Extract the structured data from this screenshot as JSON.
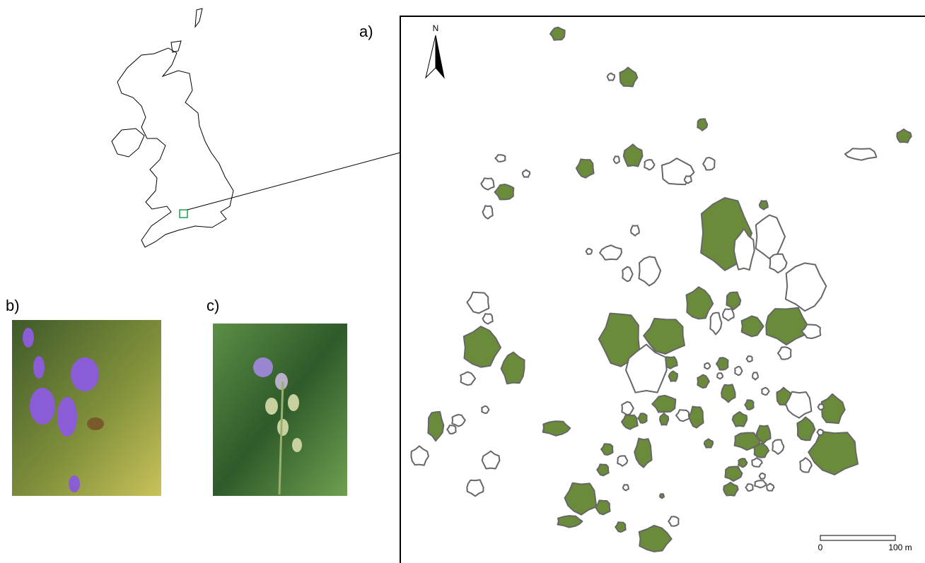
{
  "panels": {
    "a": {
      "label": "a)",
      "north": "N",
      "scale": {
        "start": "0",
        "end": "100 m"
      }
    },
    "b": {
      "label": "b)"
    },
    "c": {
      "label": "c)"
    }
  }
}
